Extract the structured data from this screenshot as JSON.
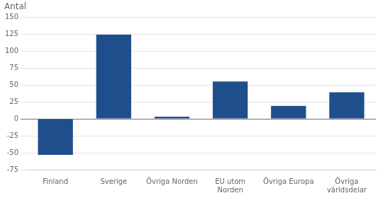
{
  "chart_data": {
    "type": "bar",
    "ylabel": "Antal",
    "categories": [
      "Finland",
      "Sverige",
      "Övriga Norden",
      "EU utom\nNorden",
      "Övriga Europa",
      "Övriga\nvärldsdelar"
    ],
    "values": [
      -53,
      124,
      3,
      55,
      19,
      39
    ],
    "color": "#1F4E8C",
    "ylim": [
      -75,
      150
    ],
    "yticks": [
      -75,
      -50,
      -25,
      0,
      25,
      50,
      75,
      100,
      125,
      150
    ],
    "grid": true
  }
}
